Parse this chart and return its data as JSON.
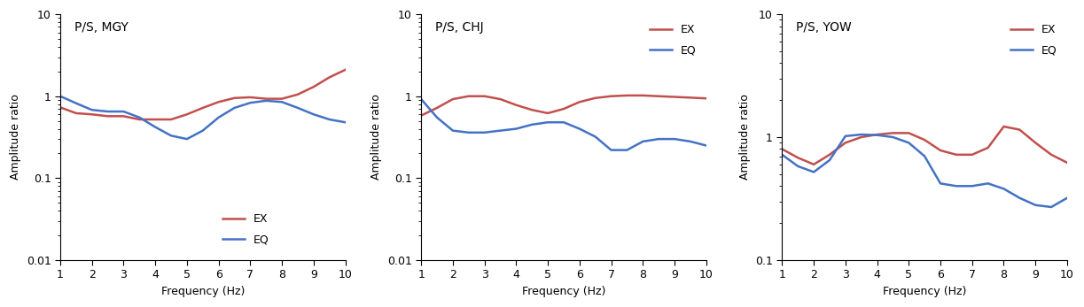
{
  "panels": [
    {
      "title": "P/S, MGY",
      "ylim": [
        0.01,
        10
      ],
      "xlim": [
        1,
        10
      ],
      "ylabel": "Amplitude ratio",
      "xlabel": "Frequency (Hz)",
      "ex_x": [
        1.0,
        1.5,
        2.0,
        2.5,
        3.0,
        3.5,
        4.0,
        4.5,
        5.0,
        5.5,
        6.0,
        6.5,
        7.0,
        7.5,
        8.0,
        8.5,
        9.0,
        9.5,
        10.0
      ],
      "ex_y": [
        0.73,
        0.62,
        0.6,
        0.57,
        0.57,
        0.52,
        0.52,
        0.52,
        0.6,
        0.72,
        0.85,
        0.95,
        0.97,
        0.93,
        0.93,
        1.05,
        1.3,
        1.7,
        2.1
      ],
      "eq_x": [
        1.0,
        1.5,
        2.0,
        2.5,
        3.0,
        3.5,
        4.0,
        4.5,
        5.0,
        5.5,
        6.0,
        6.5,
        7.0,
        7.5,
        8.0,
        8.5,
        9.0,
        9.5,
        10.0
      ],
      "eq_y": [
        1.0,
        0.82,
        0.68,
        0.65,
        0.65,
        0.55,
        0.42,
        0.33,
        0.3,
        0.38,
        0.55,
        0.72,
        0.83,
        0.88,
        0.85,
        0.72,
        0.6,
        0.52,
        0.48
      ],
      "legend_pos": "lower_center"
    },
    {
      "title": "P/S, CHJ",
      "ylim": [
        0.01,
        10
      ],
      "xlim": [
        1,
        10
      ],
      "ylabel": "Amplitude ratio",
      "xlabel": "Frequency (Hz)",
      "ex_x": [
        1.0,
        1.5,
        2.0,
        2.5,
        3.0,
        3.5,
        4.0,
        4.5,
        5.0,
        5.5,
        6.0,
        6.5,
        7.0,
        7.5,
        8.0,
        8.5,
        9.0,
        9.5,
        10.0
      ],
      "ex_y": [
        0.58,
        0.72,
        0.92,
        1.0,
        1.0,
        0.92,
        0.78,
        0.68,
        0.62,
        0.7,
        0.85,
        0.95,
        1.0,
        1.02,
        1.02,
        1.0,
        0.98,
        0.96,
        0.94
      ],
      "eq_x": [
        1.0,
        1.5,
        2.0,
        2.5,
        3.0,
        3.5,
        4.0,
        4.5,
        5.0,
        5.5,
        6.0,
        6.5,
        7.0,
        7.5,
        8.0,
        8.5,
        9.0,
        9.5,
        10.0
      ],
      "eq_y": [
        0.92,
        0.55,
        0.38,
        0.36,
        0.36,
        0.38,
        0.4,
        0.45,
        0.48,
        0.48,
        0.4,
        0.32,
        0.22,
        0.22,
        0.28,
        0.3,
        0.3,
        0.28,
        0.25
      ],
      "legend_pos": "upper_right"
    },
    {
      "title": "P/S, YOW",
      "ylim": [
        0.1,
        10
      ],
      "xlim": [
        1,
        10
      ],
      "ylabel": "Amplitude ratio",
      "xlabel": "Frequency (Hz)",
      "ex_x": [
        1.0,
        1.5,
        2.0,
        2.5,
        3.0,
        3.5,
        4.0,
        4.5,
        5.0,
        5.5,
        6.0,
        6.5,
        7.0,
        7.5,
        8.0,
        8.5,
        9.0,
        9.5,
        10.0
      ],
      "ex_y": [
        0.8,
        0.68,
        0.6,
        0.72,
        0.9,
        1.0,
        1.05,
        1.08,
        1.08,
        0.95,
        0.78,
        0.72,
        0.72,
        0.82,
        1.22,
        1.15,
        0.9,
        0.72,
        0.62
      ],
      "eq_x": [
        1.0,
        1.5,
        2.0,
        2.5,
        3.0,
        3.5,
        4.0,
        4.5,
        5.0,
        5.5,
        6.0,
        6.5,
        7.0,
        7.5,
        8.0,
        8.5,
        9.0,
        9.5,
        10.0
      ],
      "eq_y": [
        0.72,
        0.58,
        0.52,
        0.65,
        1.02,
        1.05,
        1.04,
        1.0,
        0.9,
        0.7,
        0.42,
        0.4,
        0.4,
        0.42,
        0.38,
        0.32,
        0.28,
        0.27,
        0.32
      ],
      "legend_pos": "upper_right"
    }
  ],
  "ex_color": "#c0504d",
  "eq_color": "#4472c4",
  "line_width": 1.8,
  "font_size": 9,
  "title_font_size": 10,
  "label_font_size": 9,
  "tick_label_size": 9
}
